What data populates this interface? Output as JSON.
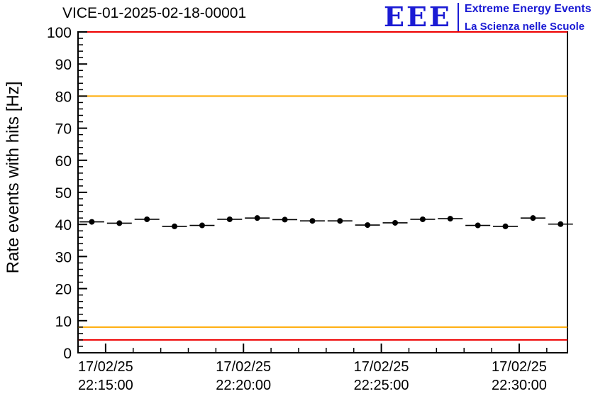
{
  "page": {
    "title": "VICE-01-2025-02-18-00001"
  },
  "logo": {
    "acronym": "EEE",
    "line1": "Extreme Energy Events",
    "line2": "La Scienza nelle Scuole",
    "color": "#1b1bd4"
  },
  "chart_data": {
    "type": "scatter",
    "title": "VICE-01-2025-02-18-00001",
    "xlabel": "",
    "ylabel": "Rate events with hits [Hz]",
    "ylim": [
      0,
      100
    ],
    "y_major_ticks": [
      0,
      10,
      20,
      30,
      40,
      50,
      60,
      70,
      80,
      90,
      100
    ],
    "y_minor_step": 2,
    "grid": false,
    "legend": "none",
    "x_axis": {
      "xlim_minutes_after_2200": [
        14,
        31.75
      ],
      "major_tick_minutes": [
        15,
        20,
        25,
        30
      ],
      "minor_tick_step_minutes": 1,
      "tick_labels": [
        {
          "date": "17/02/25",
          "time": "22:15:00"
        },
        {
          "date": "17/02/25",
          "time": "22:20:00"
        },
        {
          "date": "17/02/25",
          "time": "22:25:00"
        },
        {
          "date": "17/02/25",
          "time": "22:30:00"
        }
      ]
    },
    "series": [
      {
        "name": "rate-events-with-hits",
        "marker": "filled-circle",
        "color": "#000000",
        "xerr_minutes": 0.45,
        "times": [
          "22:14:30",
          "22:15:30",
          "22:16:30",
          "22:17:30",
          "22:18:30",
          "22:19:30",
          "22:20:30",
          "22:21:30",
          "22:22:30",
          "22:23:30",
          "22:24:30",
          "22:25:30",
          "22:26:30",
          "22:27:30",
          "22:28:30",
          "22:29:30",
          "22:30:30",
          "22:31:30"
        ],
        "x_minutes_after_2200": [
          14.5,
          15.5,
          16.5,
          17.5,
          18.5,
          19.5,
          20.5,
          21.5,
          22.5,
          23.5,
          24.5,
          25.5,
          26.5,
          27.5,
          28.5,
          29.5,
          30.5,
          31.5
        ],
        "values": [
          40.8,
          40.4,
          41.6,
          39.4,
          39.7,
          41.6,
          42.0,
          41.5,
          41.1,
          41.1,
          39.8,
          40.5,
          41.6,
          41.8,
          39.7,
          39.4,
          42.0,
          40.1
        ]
      }
    ],
    "threshold_lines": [
      {
        "name": "upper-alarm",
        "y": 100,
        "color": "#ee0000"
      },
      {
        "name": "upper-warning",
        "y": 80,
        "color": "#ffaa00"
      },
      {
        "name": "lower-warning",
        "y": 8,
        "color": "#ffaa00"
      },
      {
        "name": "lower-alarm",
        "y": 4,
        "color": "#ee0000"
      }
    ]
  }
}
